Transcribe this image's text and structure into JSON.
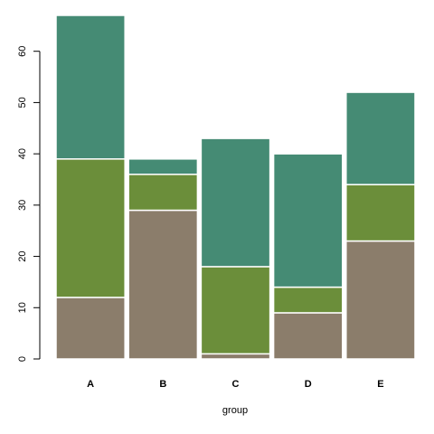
{
  "chart_data": {
    "type": "bar",
    "stacked": true,
    "title": "",
    "xlabel": "group",
    "ylabel": "",
    "categories": [
      "A",
      "B",
      "C",
      "D",
      "E"
    ],
    "series": [
      {
        "values": [
          12,
          29,
          1,
          9,
          23
        ],
        "color": "#8b7d6b"
      },
      {
        "values": [
          27,
          7,
          17,
          5,
          11
        ],
        "color": "#6b8e3a"
      },
      {
        "values": [
          28,
          3,
          25,
          26,
          18
        ],
        "color": "#458b74"
      }
    ],
    "ylim": [
      0,
      67
    ],
    "yticks": [
      0,
      10,
      20,
      30,
      40,
      50,
      60
    ],
    "grid": false,
    "legend": "none",
    "bar_border_color": "#ffffff"
  }
}
